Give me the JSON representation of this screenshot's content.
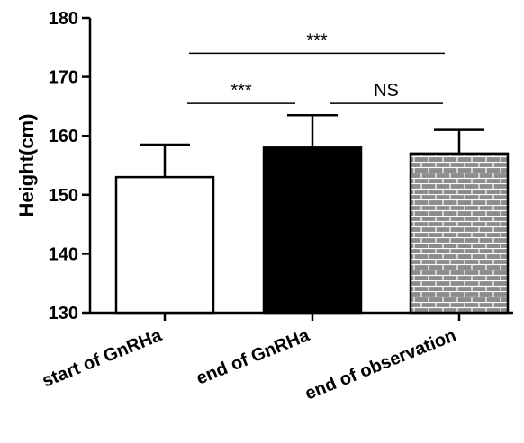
{
  "chart_data": {
    "type": "bar",
    "title": "",
    "xlabel": "",
    "ylabel": "Height(cm)",
    "ylim": [
      130,
      180
    ],
    "yticks": [
      130,
      140,
      150,
      160,
      170,
      180
    ],
    "categories": [
      "start of GnRHa",
      "end of GnRHa",
      "end of observation"
    ],
    "values": [
      153,
      158,
      157
    ],
    "error_upper": [
      158.5,
      163.5,
      161
    ],
    "bar_fills": [
      "white",
      "black",
      "brick-pattern-gray"
    ],
    "significance": [
      {
        "from": 0,
        "to": 1,
        "label": "***",
        "y": 165.5
      },
      {
        "from": 1,
        "to": 2,
        "label": "NS",
        "y": 165.5
      },
      {
        "from": 0,
        "to": 2,
        "label": "***",
        "y": 174
      }
    ],
    "grid": false,
    "legend": "none"
  },
  "colors": {
    "axis": "#000000",
    "bar_outline": "#000000",
    "pattern_bg": "#8c8c8c",
    "pattern_line": "#ffffff"
  }
}
